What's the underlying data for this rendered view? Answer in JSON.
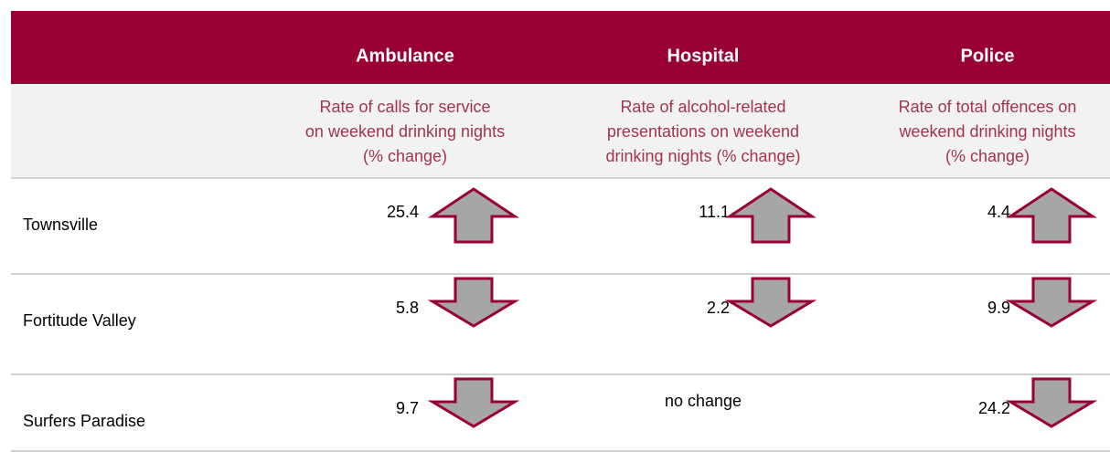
{
  "table": {
    "columns": [
      {
        "title": "Ambulance",
        "subtitle": [
          "Rate of calls for service",
          "on weekend drinking nights",
          "(% change)"
        ]
      },
      {
        "title": "Hospital",
        "subtitle": [
          "Rate of alcohol-related",
          "presentations on weekend",
          "drinking nights (% change)"
        ]
      },
      {
        "title": "Police",
        "subtitle": [
          "Rate of total offences on",
          "weekend drinking nights",
          "(% change)"
        ]
      }
    ],
    "rows": [
      {
        "label": "Townsville",
        "cells": [
          {
            "value": "25.4",
            "direction": "up"
          },
          {
            "value": "11.1",
            "direction": "up"
          },
          {
            "value": "4.4",
            "direction": "up"
          }
        ]
      },
      {
        "label": "Fortitude Valley",
        "cells": [
          {
            "value": "5.8",
            "direction": "down"
          },
          {
            "value": "2.2",
            "direction": "down"
          },
          {
            "value": "9.9",
            "direction": "down"
          }
        ]
      },
      {
        "label": "Surfers Paradise",
        "cells": [
          {
            "value": "9.7",
            "direction": "down"
          },
          {
            "value": "no change",
            "direction": null
          },
          {
            "value": "24.2",
            "direction": "down"
          }
        ]
      }
    ]
  }
}
